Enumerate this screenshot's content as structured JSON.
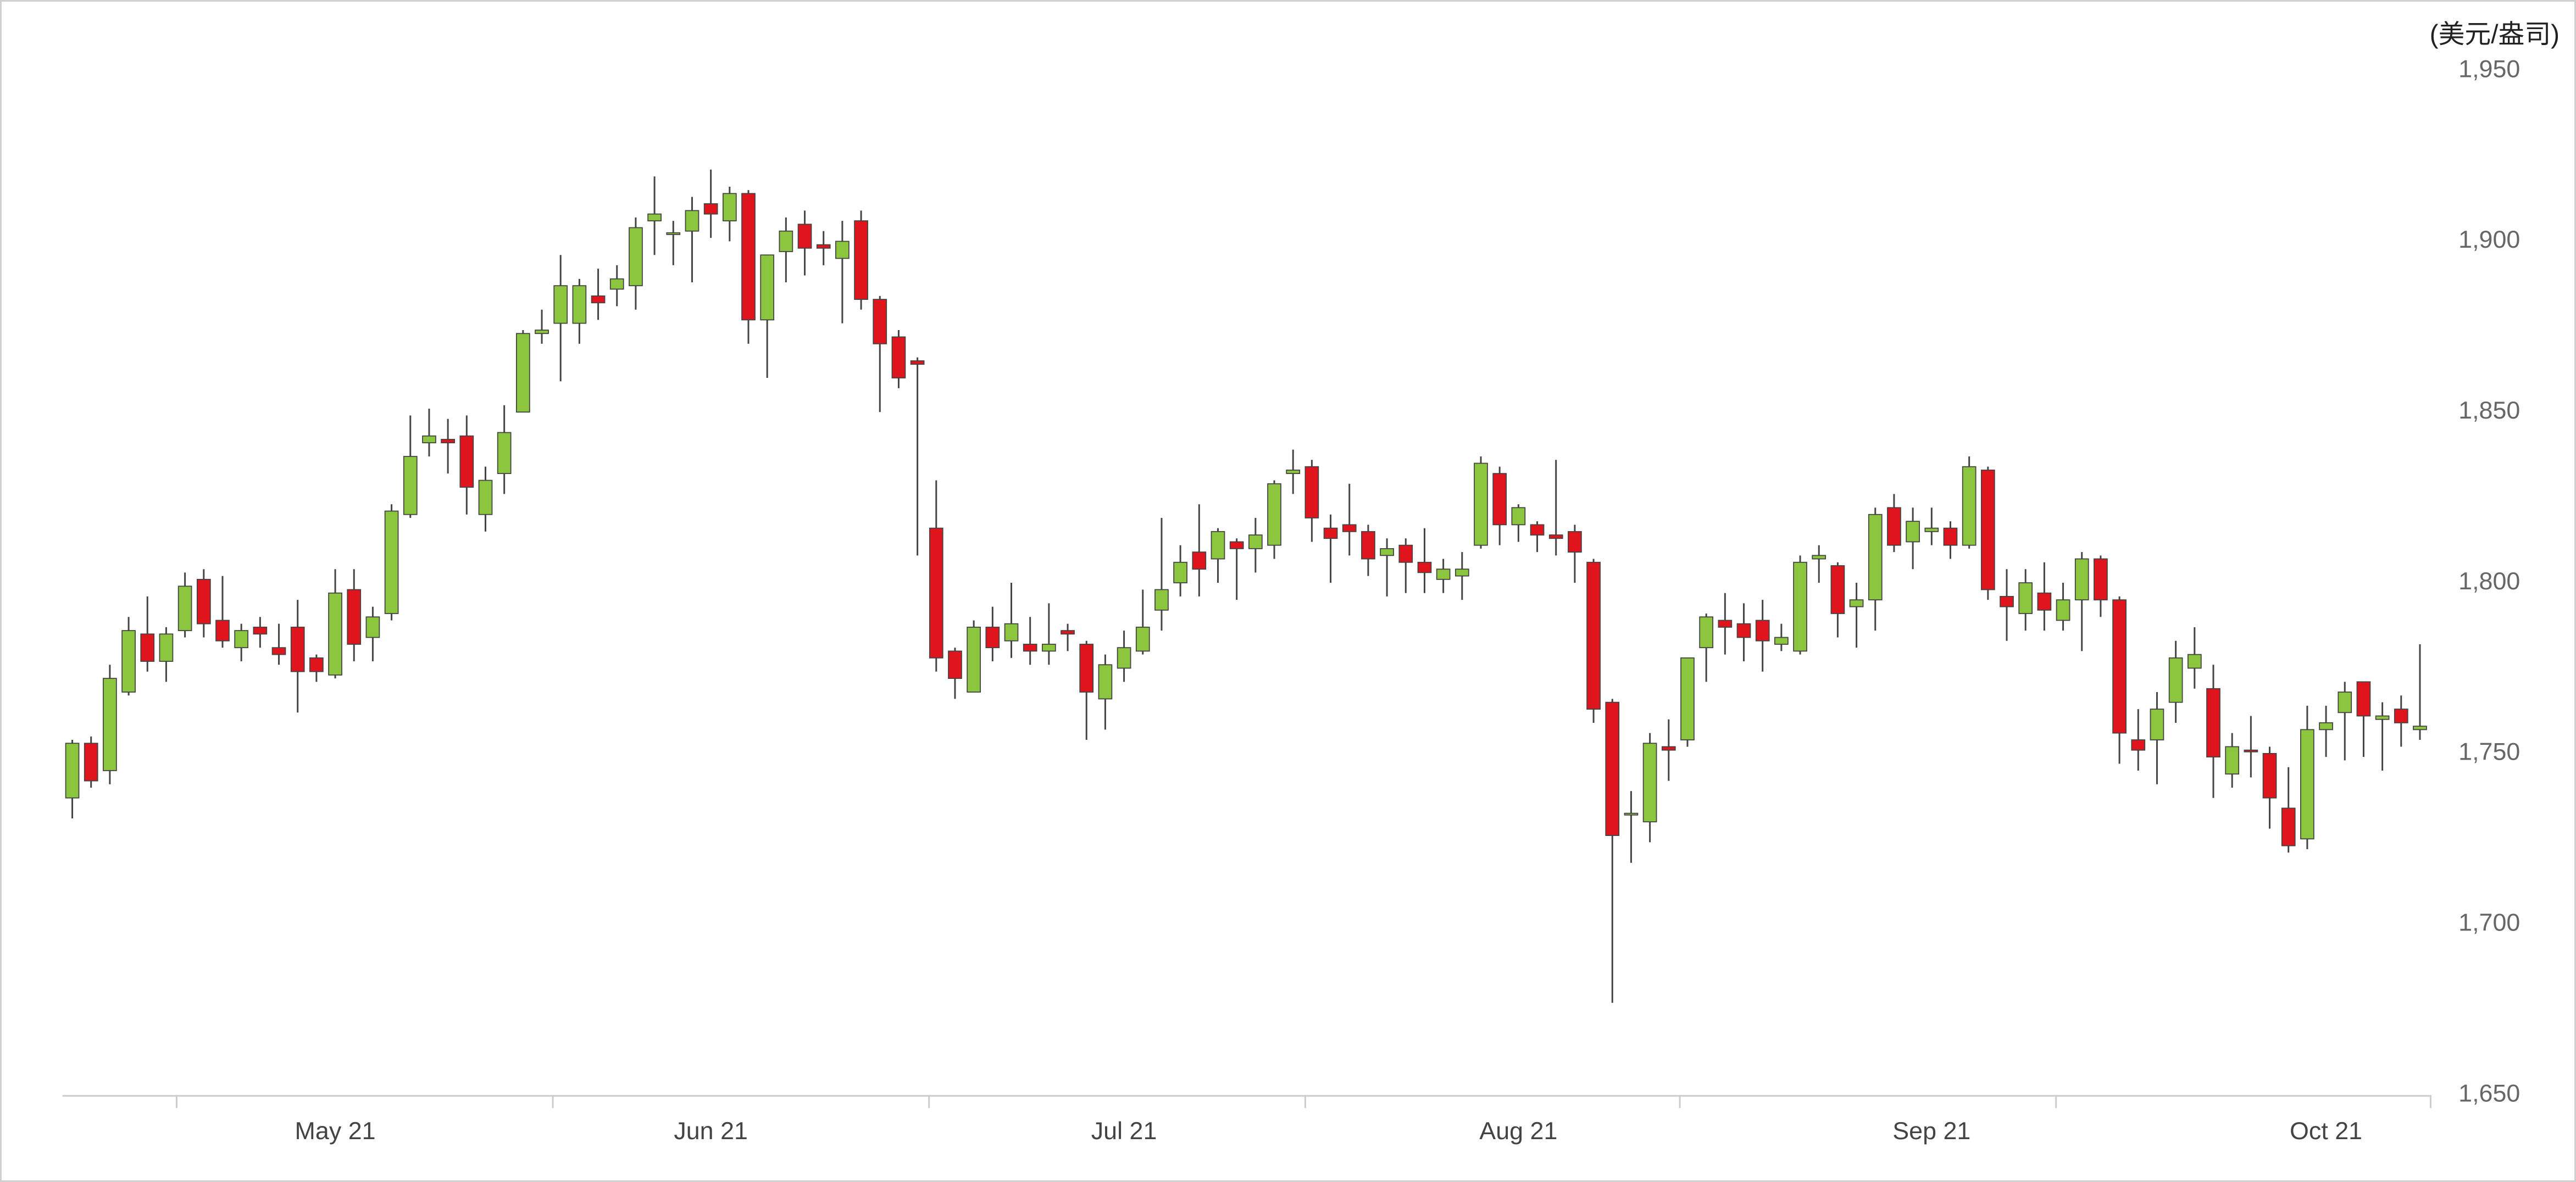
{
  "chart_data": {
    "type": "candlestick",
    "y_label": "(美元/盎司)",
    "up_color": "#8cc63e",
    "down_color": "#e0141c",
    "wick_color": "#444444",
    "grid": false,
    "ylim": [
      1650,
      1950
    ],
    "yticks": [
      {
        "value": 1650,
        "label": "1,650"
      },
      {
        "value": 1700,
        "label": "1,700"
      },
      {
        "value": 1750,
        "label": "1,750"
      },
      {
        "value": 1800,
        "label": "1,800"
      },
      {
        "value": 1850,
        "label": "1,850"
      },
      {
        "value": 1900,
        "label": "1,900"
      },
      {
        "value": 1950,
        "label": "1,950"
      }
    ],
    "categories": [
      null,
      null,
      null,
      null,
      null,
      null,
      null,
      null,
      null,
      null,
      null,
      null,
      null,
      null,
      "May 21",
      null,
      null,
      null,
      null,
      null,
      null,
      null,
      null,
      null,
      null,
      null,
      null,
      null,
      null,
      null,
      null,
      null,
      null,
      null,
      "Jun 21",
      null,
      null,
      null,
      null,
      null,
      null,
      null,
      null,
      null,
      null,
      null,
      null,
      null,
      null,
      null,
      null,
      null,
      null,
      null,
      null,
      null,
      "Jul 21",
      null,
      null,
      null,
      null,
      null,
      null,
      null,
      null,
      null,
      null,
      null,
      null,
      null,
      null,
      null,
      null,
      null,
      null,
      null,
      null,
      "Aug 21",
      null,
      null,
      null,
      null,
      null,
      null,
      null,
      null,
      null,
      null,
      null,
      null,
      null,
      null,
      null,
      null,
      null,
      null,
      null,
      null,
      null,
      "Sep 21",
      null,
      null,
      null,
      null,
      null,
      null,
      null,
      null,
      null,
      null,
      null,
      null,
      null,
      null,
      null,
      null,
      null,
      null,
      null,
      null,
      "Oct 21",
      null,
      null,
      null,
      null,
      null
    ],
    "open": [
      1737,
      1753,
      1745,
      1768,
      1785,
      1777,
      1786,
      1801,
      1789,
      1781,
      1787,
      1781,
      1787,
      1778,
      1773,
      1798,
      1784,
      1791,
      1820,
      1841,
      1842,
      1843,
      1820,
      1832,
      1850,
      1873,
      1876,
      1876,
      1884,
      1886,
      1887,
      1906,
      1902,
      1903,
      1911,
      1906,
      1914,
      1877,
      1897,
      1905,
      1899,
      1895,
      1906,
      1883,
      1872,
      1865,
      1816,
      1780,
      1768,
      1787,
      1783,
      1782,
      1780,
      1786,
      1782,
      1766,
      1775,
      1780,
      1792,
      1800,
      1809,
      1807,
      1812,
      1810,
      1811,
      1832,
      1834,
      1816,
      1817,
      1815,
      1808,
      1811,
      1806,
      1801,
      1802,
      1811,
      1832,
      1817,
      1817,
      1814,
      1815,
      1806,
      1765,
      1732,
      1730,
      1752,
      1754,
      1781,
      1789,
      1788,
      1789,
      1782,
      1780,
      1807,
      1805,
      1793,
      1795,
      1822,
      1812,
      1815,
      1816,
      1811,
      1833,
      1796,
      1791,
      1797,
      1789,
      1795,
      1807,
      1795,
      1754,
      1754,
      1765,
      1775,
      1769,
      1744,
      1751,
      1750,
      1734,
      1725,
      1757,
      1762,
      1771,
      1760,
      1763,
      1757
    ],
    "high": [
      1754,
      1755,
      1776,
      1790,
      1796,
      1787,
      1803,
      1804,
      1802,
      1788,
      1790,
      1788,
      1795,
      1779,
      1804,
      1804,
      1793,
      1823,
      1849,
      1851,
      1848,
      1849,
      1834,
      1852,
      1874,
      1880,
      1896,
      1889,
      1892,
      1893,
      1907,
      1919,
      1906,
      1913,
      1921,
      1916,
      1915,
      1896,
      1907,
      1909,
      1903,
      1906,
      1909,
      1884,
      1874,
      1866,
      1830,
      1781,
      1789,
      1793,
      1800,
      1790,
      1794,
      1788,
      1783,
      1779,
      1786,
      1798,
      1819,
      1811,
      1823,
      1816,
      1813,
      1819,
      1830,
      1839,
      1836,
      1820,
      1829,
      1817,
      1813,
      1813,
      1816,
      1807,
      1809,
      1837,
      1834,
      1823,
      1818,
      1836,
      1817,
      1807,
      1766,
      1739,
      1756,
      1760,
      1778,
      1791,
      1797,
      1794,
      1795,
      1788,
      1808,
      1811,
      1806,
      1800,
      1822,
      1826,
      1822,
      1822,
      1818,
      1837,
      1834,
      1804,
      1804,
      1806,
      1800,
      1809,
      1808,
      1796,
      1763,
      1768,
      1783,
      1787,
      1776,
      1756,
      1761,
      1752,
      1746,
      1764,
      1764,
      1771,
      1771,
      1765,
      1767,
      1782
    ],
    "low": [
      1731,
      1740,
      1741,
      1767,
      1774,
      1771,
      1784,
      1784,
      1781,
      1777,
      1781,
      1776,
      1762,
      1771,
      1772,
      1777,
      1777,
      1789,
      1819,
      1837,
      1832,
      1820,
      1815,
      1826,
      1850,
      1870,
      1859,
      1870,
      1877,
      1881,
      1880,
      1896,
      1893,
      1888,
      1901,
      1900,
      1870,
      1860,
      1888,
      1890,
      1893,
      1876,
      1880,
      1850,
      1857,
      1808,
      1774,
      1766,
      1768,
      1777,
      1778,
      1776,
      1776,
      1780,
      1754,
      1757,
      1771,
      1779,
      1786,
      1796,
      1796,
      1800,
      1795,
      1803,
      1807,
      1826,
      1812,
      1800,
      1808,
      1802,
      1796,
      1797,
      1797,
      1797,
      1795,
      1810,
      1811,
      1812,
      1809,
      1808,
      1800,
      1759,
      1677,
      1718,
      1724,
      1742,
      1752,
      1771,
      1779,
      1777,
      1774,
      1780,
      1779,
      1800,
      1784,
      1781,
      1786,
      1809,
      1804,
      1811,
      1807,
      1810,
      1795,
      1783,
      1786,
      1786,
      1786,
      1780,
      1790,
      1747,
      1745,
      1741,
      1759,
      1769,
      1737,
      1740,
      1743,
      1728,
      1721,
      1722,
      1749,
      1748,
      1749,
      1745,
      1752,
      1754
    ],
    "close": [
      1753,
      1742,
      1772,
      1786,
      1777,
      1785,
      1799,
      1788,
      1783,
      1786,
      1785,
      1779,
      1774,
      1774,
      1797,
      1782,
      1790,
      1821,
      1837,
      1843,
      1841,
      1828,
      1830,
      1844,
      1873,
      1874,
      1887,
      1887,
      1882,
      1889,
      1904,
      1908,
      1902.5,
      1909,
      1908,
      1914,
      1877,
      1896,
      1903,
      1898,
      1898,
      1900,
      1883,
      1870,
      1860,
      1864,
      1778,
      1772,
      1787,
      1781,
      1788,
      1780,
      1782,
      1785,
      1768,
      1776,
      1781,
      1787,
      1798,
      1806,
      1804,
      1815,
      1810,
      1814,
      1829,
      1833,
      1819,
      1813,
      1815,
      1807,
      1810,
      1806,
      1803,
      1804,
      1804,
      1835,
      1817,
      1822,
      1814,
      1813,
      1809,
      1763,
      1726,
      1732.5,
      1753,
      1751,
      1778,
      1790,
      1787,
      1784,
      1783,
      1784,
      1806,
      1808,
      1791,
      1795,
      1820,
      1811,
      1818,
      1816,
      1811,
      1834,
      1798,
      1793,
      1800,
      1792,
      1795,
      1807,
      1795,
      1756,
      1751,
      1763,
      1778,
      1779,
      1749,
      1752,
      1750.5,
      1737,
      1723,
      1757,
      1759,
      1768,
      1761,
      1761,
      1759,
      1758
    ]
  }
}
